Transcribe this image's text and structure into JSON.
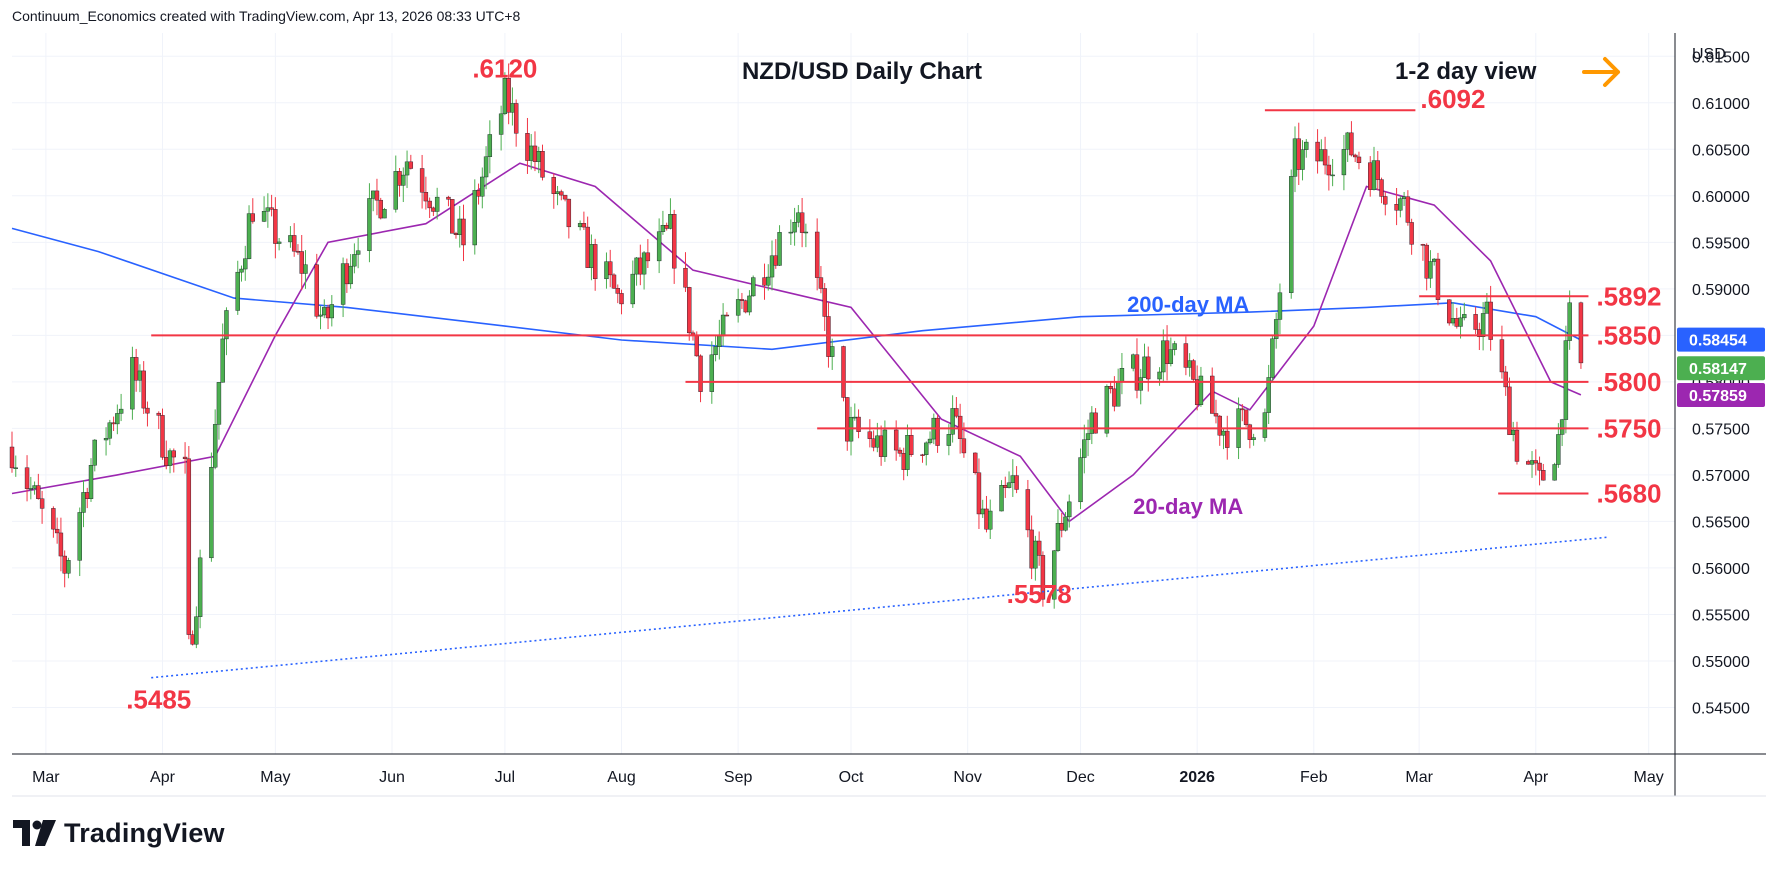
{
  "header": {
    "text": "Continuum_Economics created with TradingView.com, Apr 13, 2026 08:33 UTC+8"
  },
  "footer": {
    "brand": "TradingView"
  },
  "colors": {
    "up": "#4caf50",
    "down": "#f23645",
    "ma200": "#2962ff",
    "ma20": "#9c27b0",
    "level": "#f23645",
    "trend": "#2962ff",
    "arrow": "#ff9800",
    "badge_last": "#4caf50",
    "badge_ma200": "#2962ff",
    "badge_ma20": "#9c27b0"
  },
  "icons": {
    "view_arrow": "arrow-right-icon",
    "brand": "tradingview-logo-icon"
  },
  "chart_data": {
    "type": "candlestick",
    "title": "NZD/USD Daily Chart",
    "subtitle": "1-2 day view",
    "currency_label": "USD",
    "ylim": [
      0.54,
      0.6175
    ],
    "yticks": [
      "0.61500",
      "0.61000",
      "0.60500",
      "0.60000",
      "0.59500",
      "0.59000",
      "0.58500",
      "0.58000",
      "0.57500",
      "0.57000",
      "0.56500",
      "0.56000",
      "0.55500",
      "0.55000",
      "0.54500"
    ],
    "yticks_values": [
      0.615,
      0.61,
      0.605,
      0.6,
      0.595,
      0.59,
      0.585,
      0.58,
      0.575,
      0.57,
      0.565,
      0.56,
      0.555,
      0.55,
      0.545
    ],
    "x_axis": {
      "start": "2025-02-20",
      "end": "2026-05-08",
      "labels": [
        {
          "label": "Mar",
          "date": "2025-03-01"
        },
        {
          "label": "Apr",
          "date": "2025-04-01"
        },
        {
          "label": "May",
          "date": "2025-05-01"
        },
        {
          "label": "Jun",
          "date": "2025-06-01"
        },
        {
          "label": "Jul",
          "date": "2025-07-01"
        },
        {
          "label": "Aug",
          "date": "2025-08-01"
        },
        {
          "label": "Sep",
          "date": "2025-09-01"
        },
        {
          "label": "Oct",
          "date": "2025-10-01"
        },
        {
          "label": "Nov",
          "date": "2025-11-01"
        },
        {
          "label": "Dec",
          "date": "2025-12-01"
        },
        {
          "label": "2026",
          "date": "2026-01-01",
          "bold": true
        },
        {
          "label": "Feb",
          "date": "2026-02-01"
        },
        {
          "label": "Mar",
          "date": "2026-03-01"
        },
        {
          "label": "Apr",
          "date": "2026-04-01"
        },
        {
          "label": "May",
          "date": "2026-05-01"
        }
      ]
    },
    "price_path": [
      [
        "2025-02-20",
        0.573
      ],
      [
        "2025-03-06",
        0.56
      ],
      [
        "2025-03-13",
        0.571
      ],
      [
        "2025-03-24",
        0.581
      ],
      [
        "2025-04-03",
        0.572
      ],
      [
        "2025-04-07",
        0.57
      ],
      [
        "2025-04-08",
        0.551
      ],
      [
        "2025-04-11",
        0.56
      ],
      [
        "2025-04-17",
        0.584
      ],
      [
        "2025-04-25",
        0.599
      ],
      [
        "2025-05-09",
        0.592
      ],
      [
        "2025-05-14",
        0.586
      ],
      [
        "2025-05-23",
        0.596
      ],
      [
        "2025-06-05",
        0.604
      ],
      [
        "2025-06-20",
        0.595
      ],
      [
        "2025-07-01",
        0.6105
      ],
      [
        "2025-07-15",
        0.599
      ],
      [
        "2025-07-31",
        0.589
      ],
      [
        "2025-08-14",
        0.596
      ],
      [
        "2025-08-22",
        0.581
      ],
      [
        "2025-09-10",
        0.594
      ],
      [
        "2025-09-17",
        0.599
      ],
      [
        "2025-09-30",
        0.575
      ],
      [
        "2025-10-14",
        0.572
      ],
      [
        "2025-10-28",
        0.576
      ],
      [
        "2025-11-06",
        0.564
      ],
      [
        "2025-11-13",
        0.569
      ],
      [
        "2025-11-21",
        0.558
      ],
      [
        "2025-12-04",
        0.576
      ],
      [
        "2025-12-12",
        0.58
      ],
      [
        "2025-12-24",
        0.5835
      ],
      [
        "2026-01-08",
        0.575
      ],
      [
        "2026-01-19",
        0.576
      ],
      [
        "2026-01-27",
        0.604
      ],
      [
        "2026-02-02",
        0.604
      ],
      [
        "2026-02-11",
        0.605
      ],
      [
        "2026-02-25",
        0.599
      ],
      [
        "2026-03-03",
        0.593
      ],
      [
        "2026-03-12",
        0.585
      ],
      [
        "2026-03-19",
        0.587
      ],
      [
        "2026-03-27",
        0.573
      ],
      [
        "2026-04-02",
        0.569
      ],
      [
        "2026-04-07",
        0.574
      ],
      [
        "2026-04-10",
        0.5865
      ],
      [
        "2026-04-13",
        0.5815
      ]
    ],
    "ma200_path": [
      [
        "2025-02-20",
        0.5965
      ],
      [
        "2025-03-15",
        0.594
      ],
      [
        "2025-04-20",
        0.589
      ],
      [
        "2025-05-20",
        0.588
      ],
      [
        "2025-07-01",
        0.586
      ],
      [
        "2025-08-01",
        0.5845
      ],
      [
        "2025-09-10",
        0.5835
      ],
      [
        "2025-10-20",
        0.5855
      ],
      [
        "2025-12-01",
        0.587
      ],
      [
        "2026-01-15",
        0.5875
      ],
      [
        "2026-02-15",
        0.588
      ],
      [
        "2026-03-10",
        0.5885
      ],
      [
        "2026-04-01",
        0.587
      ],
      [
        "2026-04-13",
        0.5845
      ]
    ],
    "ma20_path": [
      [
        "2025-02-20",
        0.568
      ],
      [
        "2025-03-20",
        0.57
      ],
      [
        "2025-04-15",
        0.572
      ],
      [
        "2025-05-01",
        0.585
      ],
      [
        "2025-05-15",
        0.595
      ],
      [
        "2025-06-10",
        0.597
      ],
      [
        "2025-07-05",
        0.6035
      ],
      [
        "2025-07-25",
        0.601
      ],
      [
        "2025-08-20",
        0.592
      ],
      [
        "2025-09-10",
        0.59
      ],
      [
        "2025-10-01",
        0.588
      ],
      [
        "2025-10-25",
        0.576
      ],
      [
        "2025-11-15",
        0.572
      ],
      [
        "2025-11-28",
        0.565
      ],
      [
        "2025-12-15",
        0.57
      ],
      [
        "2026-01-05",
        0.579
      ],
      [
        "2026-01-15",
        0.577
      ],
      [
        "2026-02-01",
        0.586
      ],
      [
        "2026-02-15",
        0.601
      ],
      [
        "2026-03-05",
        0.599
      ],
      [
        "2026-03-20",
        0.593
      ],
      [
        "2026-04-05",
        0.58
      ],
      [
        "2026-04-13",
        0.5786
      ]
    ],
    "levels": [
      {
        "label": ".5892",
        "value": 0.5892,
        "from": "2026-03-01",
        "to": "2026-04-15"
      },
      {
        "label": ".5850",
        "value": 0.585,
        "from": "2025-03-29",
        "to": "2026-04-15"
      },
      {
        "label": ".5800",
        "value": 0.58,
        "from": "2025-08-18",
        "to": "2026-04-15"
      },
      {
        "label": ".5750",
        "value": 0.575,
        "from": "2025-09-22",
        "to": "2026-04-15"
      },
      {
        "label": ".5680",
        "value": 0.568,
        "from": "2026-03-22",
        "to": "2026-04-15"
      },
      {
        "label": "",
        "value": 0.6092,
        "from": "2026-01-19",
        "to": "2026-02-28"
      }
    ],
    "trendline": {
      "from": [
        "2025-03-29",
        0.5482
      ],
      "to": [
        "2026-04-20",
        0.5633
      ]
    },
    "annotations": [
      {
        "label": ".6120",
        "date": "2025-07-01",
        "value": 0.6125
      },
      {
        "label": ".6092",
        "date": "2026-02-28",
        "value": 0.6092
      },
      {
        "label": ".5578",
        "date": "2025-11-20",
        "value": 0.556
      },
      {
        "label": ".5485",
        "date": "2025-03-31",
        "value": 0.5468
      }
    ],
    "ma_labels": [
      {
        "label": "200-day MA",
        "date": "2025-12-15",
        "value": 0.5875,
        "series": "ma200"
      },
      {
        "label": "20-day MA",
        "date": "2025-12-15",
        "value": 0.5658,
        "series": "ma20"
      }
    ],
    "badges": [
      {
        "text": "0.58454",
        "value": 0.58454,
        "color_key": "badge_ma200"
      },
      {
        "text": "0.58147",
        "value": 0.58147,
        "color_key": "badge_last"
      },
      {
        "text": "0.57859",
        "value": 0.57859,
        "color_key": "badge_ma20"
      }
    ]
  }
}
